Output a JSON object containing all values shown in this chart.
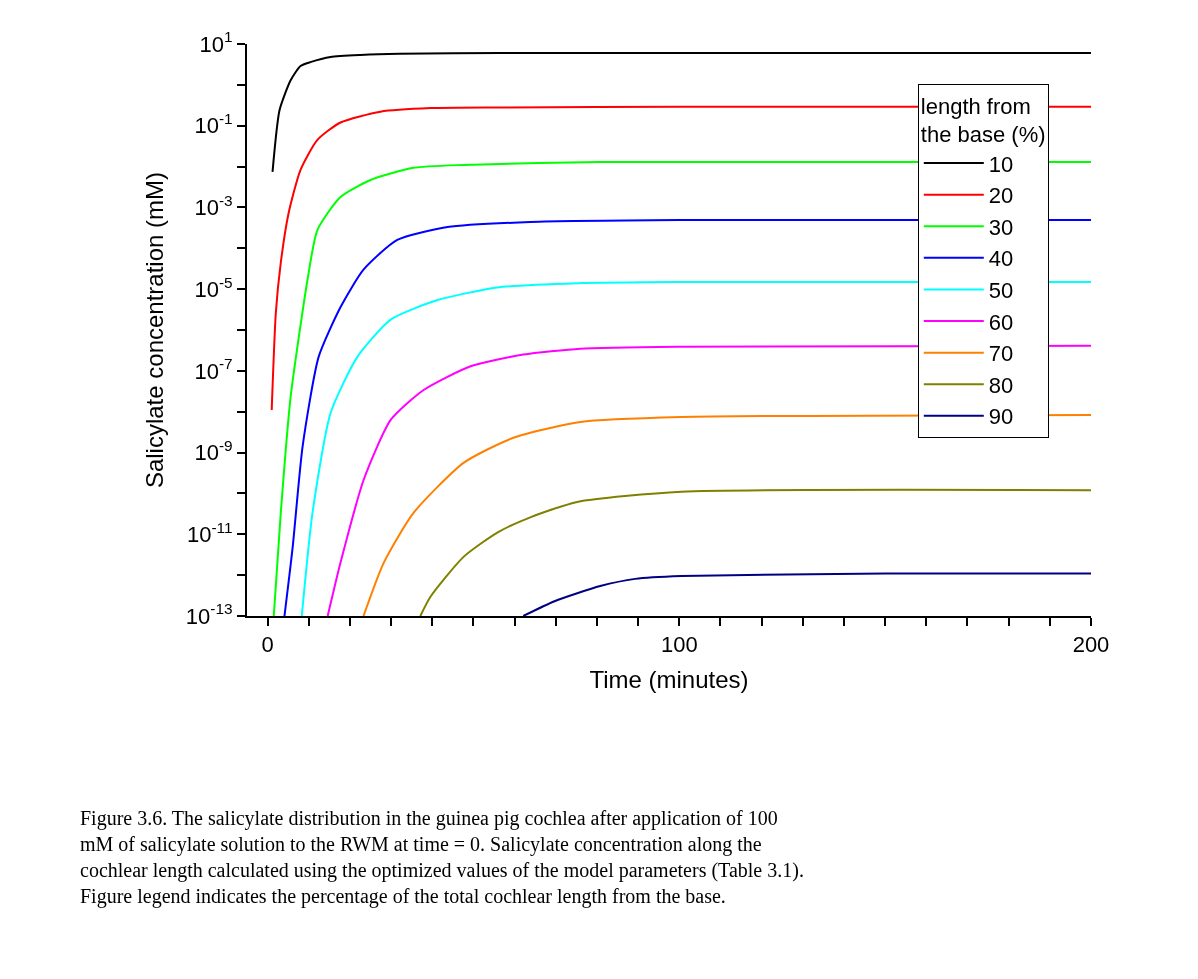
{
  "chart_data": {
    "type": "line",
    "xlabel": "Time (minutes)",
    "ylabel": "Salicylate concentration (mM)",
    "legend_title": "length from\nthe base (%)",
    "xlim": [
      -5,
      200
    ],
    "ylim": [
      1e-13,
      10
    ],
    "log": "y",
    "legend": "top right",
    "marker": "none",
    "line_style": "solid",
    "xticks": [
      0,
      {
        "value": 10,
        "label": null
      },
      {
        "value": 20,
        "label": null
      },
      {
        "value": 30,
        "label": null
      },
      {
        "value": 40,
        "label": null
      },
      {
        "value": 50,
        "label": null
      },
      {
        "value": 60,
        "label": null
      },
      {
        "value": 70,
        "label": null
      },
      {
        "value": 80,
        "label": null
      },
      {
        "value": 90,
        "label": null
      },
      100,
      {
        "value": 110,
        "label": null
      },
      {
        "value": 120,
        "label": null
      },
      {
        "value": 130,
        "label": null
      },
      {
        "value": 140,
        "label": null
      },
      {
        "value": 150,
        "label": null
      },
      {
        "value": 160,
        "label": null
      },
      {
        "value": 170,
        "label": null
      },
      {
        "value": 180,
        "label": null
      },
      {
        "value": 190,
        "label": null
      },
      200
    ],
    "yticks": [
      {
        "value": 1e-13,
        "label": "10$^{-13}$"
      },
      {
        "value": 1e-12,
        "label": null
      },
      {
        "value": 1e-11,
        "label": "10$^{-11}$"
      },
      {
        "value": 1e-10,
        "label": null
      },
      {
        "value": 1e-09,
        "label": "10$^{-9}$"
      },
      {
        "value": 1e-08,
        "label": null
      },
      {
        "value": 1e-07,
        "label": "10$^{-7}$"
      },
      {
        "value": 1e-06,
        "label": null
      },
      {
        "value": 1e-05,
        "label": "10$^{-5}$"
      },
      {
        "value": 0.0001,
        "label": null
      },
      {
        "value": 0.001,
        "label": "10$^{-3}$"
      },
      {
        "value": 0.01,
        "label": null
      },
      {
        "value": 0.1,
        "label": "10$^{-1}$"
      },
      {
        "value": 1,
        "label": null
      },
      {
        "value": 10,
        "label": "10$^{1}$"
      }
    ],
    "series": [
      {
        "name": "10",
        "color": "#000000",
        "x": [
          1.2,
          2.9,
          5.6,
          8,
          10.4,
          15.3,
          22.6,
          32,
          56.6,
          100,
          200
        ],
        "values": [
          0.0074,
          0.24,
          1.3,
          2.9,
          3.6,
          4.8,
          5.4,
          5.8,
          6.0,
          6.0,
          6.0
        ]
      },
      {
        "name": "20",
        "color": "#ff0000",
        "x": [
          1,
          2,
          3.2,
          5.1,
          8,
          12.1,
          17.7,
          27.4,
          39.6,
          56.6,
          100,
          200
        ],
        "values": [
          1.1e-08,
          2.6e-06,
          4.4e-05,
          0.00072,
          0.0083,
          0.045,
          0.12,
          0.22,
          0.27,
          0.28,
          0.29,
          0.29
        ]
      },
      {
        "name": "30",
        "color": "#00ff00",
        "x": [
          1.5,
          3.2,
          5.6,
          9.7,
          12.1,
          17.7,
          25,
          35.4,
          47.6,
          81,
          200
        ],
        "values": [
          1e-13,
          3.3e-11,
          2.3e-08,
          1.7e-05,
          0.00028,
          0.0018,
          0.0047,
          0.0093,
          0.011,
          0.013,
          0.013
        ]
      },
      {
        "name": "40",
        "color": "#0000ff",
        "x": [
          4.1,
          6.1,
          8.5,
          12.4,
          17.7,
          23.3,
          31.5,
          43.7,
          63.8,
          100,
          200
        ],
        "values": [
          1e-13,
          4.9e-12,
          1.4e-09,
          2.2e-07,
          3.6e-06,
          3e-05,
          0.00016,
          0.00033,
          0.00044,
          0.00049,
          0.00049
        ]
      },
      {
        "name": "50",
        "color": "#00ffff",
        "x": [
          8.3,
          10.9,
          15.3,
          21.8,
          29.9,
          41.3,
          55.8,
          75.2,
          100,
          200
        ],
        "values": [
          1e-13,
          3.3e-11,
          9.3e-09,
          2.2e-07,
          1.8e-06,
          5.4e-06,
          1.1e-05,
          1.4e-05,
          1.5e-05,
          1.5e-05
        ]
      },
      {
        "name": "60",
        "color": "#ff00ff",
        "x": [
          14.6,
          17.7,
          23.3,
          29.9,
          37.9,
          49.3,
          62.1,
          76,
          100,
          200
        ],
        "values": [
          1e-13,
          2e-12,
          2.1e-10,
          6.3e-09,
          3.4e-08,
          1.3e-07,
          2.5e-07,
          3.5e-07,
          3.9e-07,
          4.1e-07
        ]
      },
      {
        "name": "70",
        "color": "#ff8000",
        "x": [
          23.3,
          28.2,
          35.4,
          47.6,
          59.7,
          76,
          100.5,
          200
        ],
        "values": [
          1e-13,
          2e-12,
          3.3e-11,
          5.6e-10,
          2.3e-09,
          5.6e-09,
          7.4e-09,
          8.3e-09
        ]
      },
      {
        "name": "80",
        "color": "#808000",
        "x": [
          37.1,
          39.6,
          47.6,
          55.8,
          63.8,
          75.2,
          100.5,
          200
        ],
        "values": [
          1e-13,
          3e-13,
          2.8e-12,
          1.1e-11,
          2.6e-11,
          6.2e-11,
          1.1e-10,
          1.2e-10
        ]
      },
      {
        "name": "90",
        "color": "#000080",
        "x": [
          62.1,
          69.7,
          80.8,
          89.3,
          100.5,
          150,
          200
        ],
        "values": [
          1e-13,
          2.3e-13,
          5.4e-13,
          8.1e-13,
          9.5e-13,
          1.1e-12,
          1.1e-12
        ]
      }
    ],
    "annotations": [
      "Figure 3.6. The salicylate distribution in the guinea pig cochlea after application of 100 mM of salicylate solution to the RWM at time = 0. Salicylate concentration along the cochlear length calculated using the optimized values of the model parameters (Table 3.1). Figure legend indicates the percentage of the total cochlear length from the base."
    ]
  }
}
